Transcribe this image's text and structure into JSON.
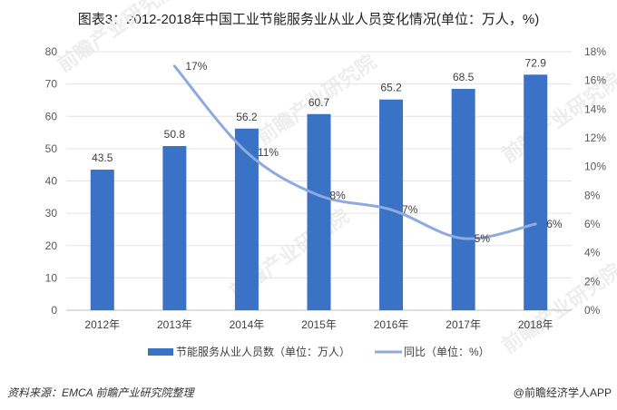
{
  "title": "图表3：2012-2018年中国工业节能服务业从业人员变化情况(单位：万人，%)",
  "source": "资料来源：EMCA 前瞻产业研究院整理",
  "credit": "@前瞻经济学人APP",
  "watermark": "前瞻产业研究院",
  "chart_data": {
    "type": "bar+line",
    "categories": [
      "2012年",
      "2013年",
      "2014年",
      "2015年",
      "2016年",
      "2017年",
      "2018年"
    ],
    "series": [
      {
        "name": "节能服务从业人员数（单位：万人）",
        "type": "bar",
        "axis": "left",
        "color": "#3a72c6",
        "values": [
          43.5,
          50.8,
          56.2,
          60.7,
          65.2,
          68.5,
          72.9
        ],
        "labels": [
          "43.5",
          "50.8",
          "56.2",
          "60.7",
          "65.2",
          "68.5",
          "72.9"
        ]
      },
      {
        "name": "同比（单位：%）",
        "type": "line",
        "axis": "right",
        "color": "#8eaadf",
        "values": [
          null,
          17,
          11,
          8,
          7,
          5,
          6
        ],
        "labels": [
          "",
          "17%",
          "11%",
          "8%",
          "7%",
          "5%",
          "6%"
        ]
      }
    ],
    "y_left": {
      "range": [
        0,
        80
      ],
      "ticks": [
        "0",
        "10",
        "20",
        "30",
        "40",
        "50",
        "60",
        "70",
        "80"
      ]
    },
    "y_right": {
      "range": [
        0,
        18
      ],
      "ticks": [
        "0%",
        "2%",
        "4%",
        "6%",
        "8%",
        "10%",
        "12%",
        "14%",
        "16%",
        "18%"
      ]
    },
    "grid": true,
    "legend": "bottom"
  }
}
